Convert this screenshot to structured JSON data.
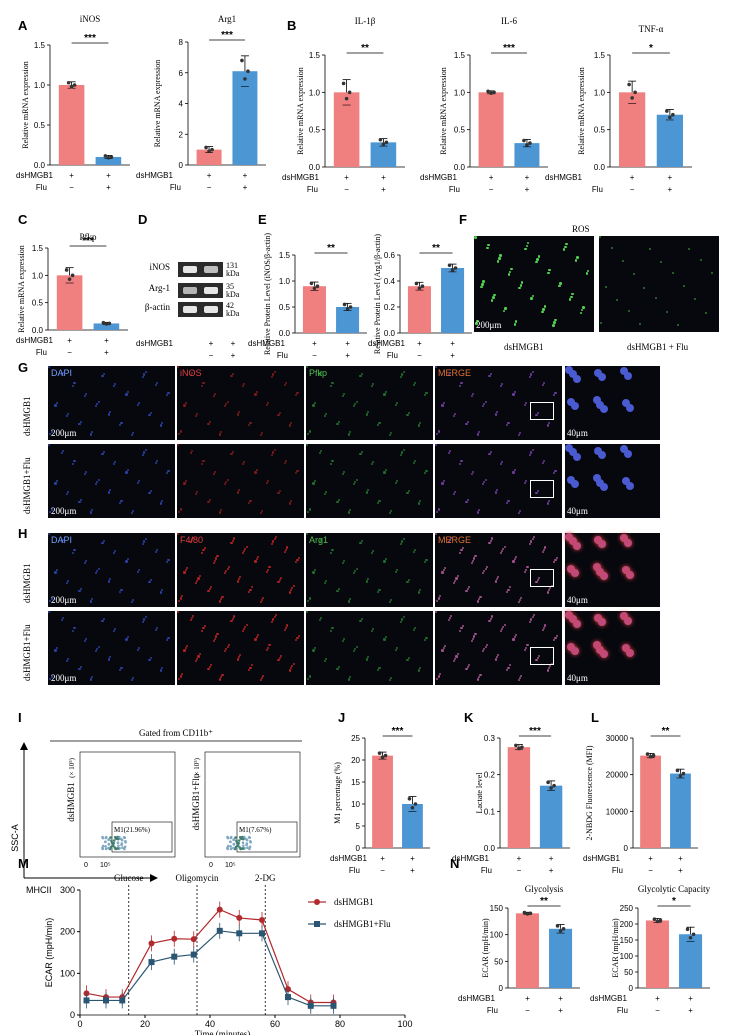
{
  "panel_letters": [
    "A",
    "B",
    "C",
    "D",
    "E",
    "F",
    "G",
    "H",
    "I",
    "J",
    "K",
    "L",
    "M",
    "N"
  ],
  "treatment": {
    "row1": "dsHMGB1",
    "row2": "Flu",
    "plus": "+",
    "minus": "−"
  },
  "ylabels": {
    "mrna": "Relative mRNA expression",
    "inos_protein": "Relative Protein Level (iNOS/β-actin)",
    "arg1_protein": "Relative Protein Level (Arg1/β-actin)",
    "m1": "M1 percentage (%)",
    "lactate": "Lactate level",
    "nbdg": "2-NBDG Fluorescence (MFI)",
    "ecar": "ECAR (mpH/min)"
  },
  "colors": {
    "ctrl": "#f07f80",
    "flu": "#4d96d4",
    "line_ctrl": "#b22a2e",
    "line_flu": "#2a5673"
  },
  "chart_data": [
    {
      "id": "A1",
      "type": "bar",
      "title": "iNOS",
      "ylim": [
        0,
        1.5
      ],
      "ticks": [
        "0.0",
        "0.5",
        "1.0",
        "1.5"
      ],
      "values": [
        1.0,
        0.1
      ],
      "err": [
        0.04,
        0.02
      ],
      "sig": "***"
    },
    {
      "id": "A2",
      "type": "bar",
      "title": "Arg1",
      "ylim": [
        0,
        8
      ],
      "ticks": [
        "0",
        "2",
        "4",
        "6",
        "8"
      ],
      "values": [
        1.0,
        6.1
      ],
      "err": [
        0.2,
        1.0
      ],
      "sig": "***"
    },
    {
      "id": "B1",
      "type": "bar",
      "title": "IL-1β",
      "ylim": [
        0,
        1.5
      ],
      "ticks": [
        "0.0",
        "0.5",
        "1.0",
        "1.5"
      ],
      "values": [
        1.0,
        0.33
      ],
      "err": [
        0.17,
        0.05
      ],
      "sig": "**"
    },
    {
      "id": "B2",
      "type": "bar",
      "title": "IL-6",
      "ylim": [
        0,
        1.5
      ],
      "ticks": [
        "0.0",
        "0.5",
        "1.0",
        "1.5"
      ],
      "values": [
        1.0,
        0.32
      ],
      "err": [
        0.02,
        0.05
      ],
      "sig": "***"
    },
    {
      "id": "B3",
      "type": "bar",
      "title": "TNF-α",
      "ylim": [
        0,
        1.5
      ],
      "ticks": [
        "0.0",
        "0.5",
        "1.0",
        "1.5"
      ],
      "values": [
        1.0,
        0.7
      ],
      "err": [
        0.15,
        0.07
      ],
      "sig": "*"
    },
    {
      "id": "C",
      "type": "bar",
      "title": "Pfkp",
      "ylim": [
        0,
        1.5
      ],
      "ticks": [
        "0.0",
        "0.5",
        "1.0",
        "1.5"
      ],
      "values": [
        1.0,
        0.12
      ],
      "err": [
        0.14,
        0.02
      ],
      "sig": "***"
    },
    {
      "id": "E1",
      "type": "bar",
      "title": "",
      "ylim": [
        0,
        1.5
      ],
      "ticks": [
        "0.0",
        "0.5",
        "1.0",
        "1.5"
      ],
      "values": [
        0.9,
        0.5
      ],
      "err": [
        0.08,
        0.07
      ],
      "sig": "**"
    },
    {
      "id": "E2",
      "type": "bar",
      "title": "",
      "ylim": [
        0,
        0.6
      ],
      "ticks": [
        "0.0",
        "0.2",
        "0.4",
        "0.6"
      ],
      "values": [
        0.36,
        0.5
      ],
      "err": [
        0.03,
        0.03
      ],
      "sig": "**"
    },
    {
      "id": "J",
      "type": "bar",
      "title": "",
      "ylim": [
        0,
        25
      ],
      "ticks": [
        "0",
        "5",
        "10",
        "15",
        "20",
        "25"
      ],
      "values": [
        21,
        10
      ],
      "err": [
        0.8,
        1.7
      ],
      "sig": "***"
    },
    {
      "id": "K",
      "type": "bar",
      "title": "",
      "ylim": [
        0,
        0.3
      ],
      "ticks": [
        "0.0",
        "0.1",
        "0.2",
        "0.3"
      ],
      "values": [
        0.275,
        0.17
      ],
      "err": [
        0.007,
        0.013
      ],
      "sig": "***"
    },
    {
      "id": "L",
      "type": "bar",
      "title": "",
      "ylim": [
        0,
        30000
      ],
      "ticks": [
        "0",
        "10000",
        "20000",
        "30000"
      ],
      "values": [
        25200,
        20300
      ],
      "err": [
        600,
        1200
      ],
      "sig": "**"
    },
    {
      "id": "N1",
      "type": "bar",
      "title": "Glycolysis",
      "ylim": [
        0,
        150
      ],
      "ticks": [
        "0",
        "50",
        "100",
        "150"
      ],
      "values": [
        140,
        111
      ],
      "err": [
        2,
        8
      ],
      "sig": "**"
    },
    {
      "id": "N2",
      "type": "bar",
      "title": "Glycolytic Capacity",
      "ylim": [
        0,
        250
      ],
      "ticks": [
        "0",
        "50",
        "100",
        "150",
        "200",
        "250"
      ],
      "values": [
        211,
        168
      ],
      "err": [
        6,
        22
      ],
      "sig": "*"
    },
    {
      "id": "M",
      "type": "line",
      "xlabel": "Time (minutes)",
      "ylim": [
        0,
        300
      ],
      "xlim": [
        0,
        100
      ],
      "yticks": [
        "0",
        "100",
        "200",
        "300"
      ],
      "xticks": [
        "0",
        "20",
        "40",
        "60",
        "80",
        "100"
      ],
      "injections": [
        {
          "x": 15,
          "label": "Glucose"
        },
        {
          "x": 36,
          "label": "Oligomycin"
        },
        {
          "x": 57,
          "label": "2-DG"
        }
      ],
      "x": [
        2,
        8,
        13,
        22,
        29,
        35,
        43,
        49,
        56,
        64,
        71,
        78
      ],
      "series": [
        {
          "name": "dsHMGB1",
          "values": [
            52,
            43,
            43,
            172,
            183,
            182,
            253,
            233,
            228,
            62,
            30,
            30
          ]
        },
        {
          "name": "dsHMGB1+Flu",
          "values": [
            35,
            35,
            35,
            127,
            140,
            145,
            202,
            196,
            196,
            43,
            22,
            22
          ]
        }
      ]
    }
  ],
  "western": {
    "labels": [
      "iNOS",
      "Arg-1",
      "β-actin"
    ],
    "kda": [
      "131 kDa",
      "35 kDa",
      "42 kDa"
    ]
  },
  "ros": {
    "title": "ROS",
    "left": "dsHMGB1",
    "right": "dsHMGB1 + Flu",
    "scale": "200μm"
  },
  "micro_G": {
    "cols": [
      "DAPI",
      "iNOS",
      "Pfkp",
      "MERGE"
    ],
    "rows": [
      "dsHMGB1",
      "dsHMGB1+Flu"
    ],
    "scale": "200μm",
    "zoom_scale": "40μm"
  },
  "micro_H": {
    "cols": [
      "DAPI",
      "F4/80",
      "Arg1",
      "MERGE"
    ],
    "rows": [
      "dsHMGB1",
      "dsHMGB1+Flu"
    ],
    "scale": "200μm",
    "zoom_scale": "40μm"
  },
  "flow": {
    "header": "Gated from CD11b⁺",
    "yaxis": "SSC-A",
    "xaxis": "MHCII",
    "left_row": "dsHMGB1",
    "right_row": "dsHMGB1+Flu",
    "left_gate": "M1(21.96%)",
    "right_gate": "M1(7.67%)",
    "exp": "(× 10⁵)",
    "tick": "10⁵",
    "tick0": "0"
  }
}
